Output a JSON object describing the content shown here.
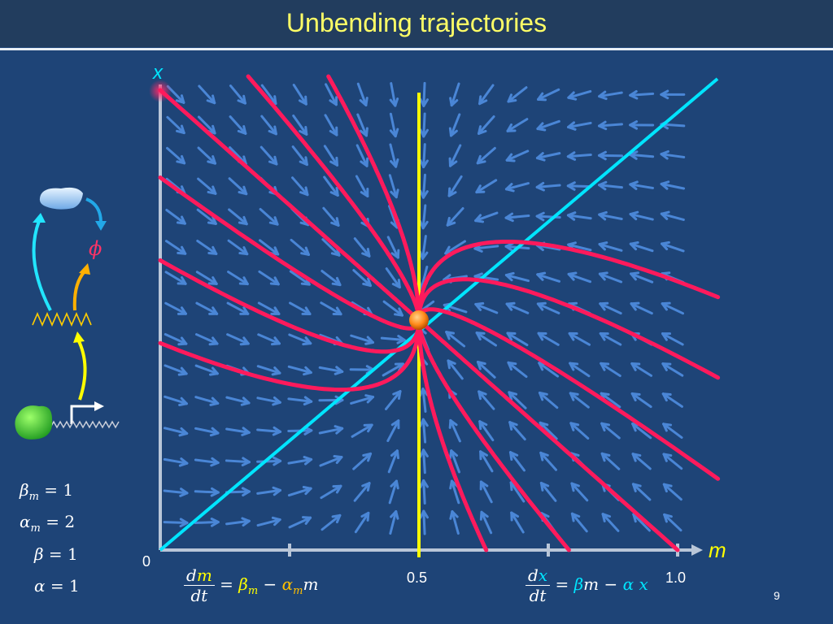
{
  "title": "Unbending trajectories",
  "axes": {
    "x_label": "m",
    "y_label": "x",
    "origin_label": "0",
    "tick_labels": [
      "0.5",
      "1.0"
    ]
  },
  "params": [
    {
      "sym": "β",
      "sub": "m",
      "value": "= 1"
    },
    {
      "sym": "α",
      "sub": "m",
      "value": "= 2"
    },
    {
      "sym": "β",
      "sub": "",
      "value": "= 1"
    },
    {
      "sym": "α",
      "sub": "",
      "value": "= 1"
    }
  ],
  "equations": {
    "eq1": {
      "d": "d",
      "var": "m",
      "dt": "dt",
      "rhs_eq": "=",
      "beta": "β",
      "beta_sub": "m",
      "minus": "−",
      "alpha": "α",
      "alpha_sub": "m",
      "tail": "m"
    },
    "eq2": {
      "d": "d",
      "var": "x",
      "dt": "dt",
      "rhs_eq": "=",
      "beta": "β",
      "m": "m",
      "minus": "−",
      "alpha": "α",
      "tail": "x"
    }
  },
  "diagram": {
    "phi_label": "ϕ"
  },
  "slide_number": "9",
  "colors": {
    "background": "#1e4477",
    "title_bar": "#223d5e",
    "title_text": "#ffff66",
    "trajectory": "#ff1a5c",
    "nullcline_m": "#ffff00",
    "nullcline_x": "#00e5ff",
    "field_arrow": "#4a86d6",
    "fixed_point": "#ff8a1a"
  }
}
